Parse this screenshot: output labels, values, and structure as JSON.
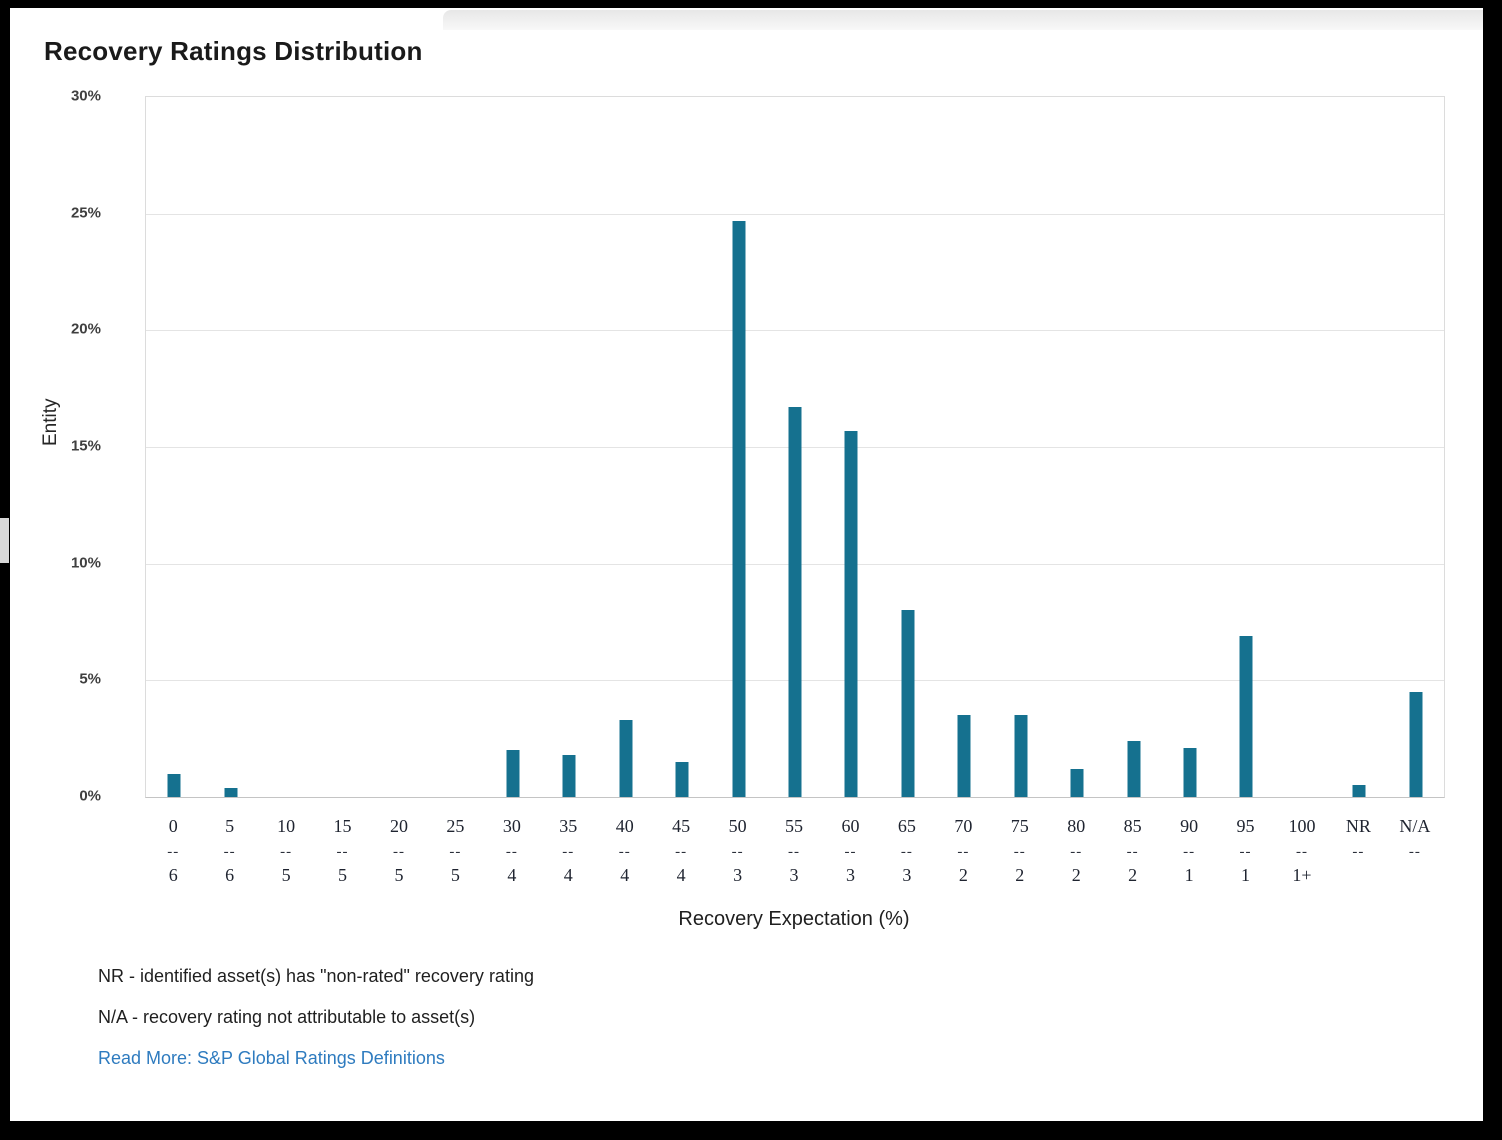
{
  "page": {
    "title": "Recovery Ratings Distribution"
  },
  "chart_data": {
    "type": "bar",
    "title": "Recovery Ratings Distribution",
    "xlabel": "Recovery Expectation (%)",
    "ylabel": "Entity",
    "ylim": [
      0,
      30
    ],
    "yticks": [
      "30%",
      "25%",
      "20%",
      "15%",
      "10%",
      "5%",
      "0%"
    ],
    "grid": true,
    "legend": "none",
    "categories": [
      "0",
      "5",
      "10",
      "15",
      "20",
      "25",
      "30",
      "35",
      "40",
      "45",
      "50",
      "55",
      "60",
      "65",
      "70",
      "75",
      "80",
      "85",
      "90",
      "95",
      "100",
      "NR",
      "N/A"
    ],
    "values": [
      1.0,
      0.4,
      0,
      0,
      0,
      0,
      2.0,
      1.8,
      3.3,
      1.5,
      24.7,
      16.7,
      15.7,
      8.0,
      3.5,
      3.5,
      1.2,
      2.4,
      2.1,
      6.9,
      0,
      0.5,
      4.5
    ],
    "label_separator": "--",
    "recovery_rating_row": [
      "6",
      "6",
      "5",
      "5",
      "5",
      "5",
      "4",
      "4",
      "4",
      "4",
      "3",
      "3",
      "3",
      "3",
      "2",
      "2",
      "2",
      "2",
      "1",
      "1",
      "1+",
      "",
      ""
    ]
  },
  "footnotes": {
    "nr": "NR - identified asset(s) has \"non-rated\" recovery rating",
    "na": "N/A - recovery rating not attributable to asset(s)",
    "read_more": "Read More: S&P Global Ratings Definitions"
  },
  "colors": {
    "bar": "#15718f",
    "link": "#2e7bbf",
    "title_text": "#1a1a1a"
  }
}
